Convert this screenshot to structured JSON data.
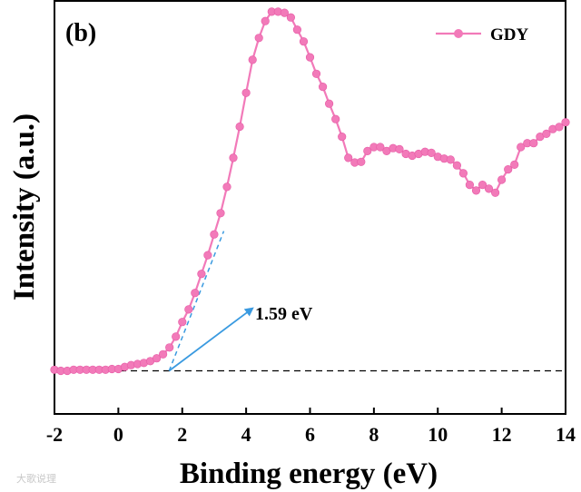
{
  "chart_data": {
    "type": "line",
    "panel_label": "(b)",
    "xlabel": "Binding energy (eV)",
    "ylabel": "Intensity (a.u.)",
    "xlim": [
      -2,
      14
    ],
    "ylim": [
      -0.12,
      1.03
    ],
    "x_ticks": [
      -2,
      0,
      2,
      4,
      6,
      8,
      10,
      12,
      14
    ],
    "baseline_value": 0,
    "series": [
      {
        "name": "GDY",
        "color": "#f27ab9",
        "x": [
          -2.0,
          -1.8,
          -1.6,
          -1.4,
          -1.2,
          -1.0,
          -0.8,
          -0.6,
          -0.4,
          -0.2,
          0.0,
          0.2,
          0.4,
          0.6,
          0.8,
          1.0,
          1.2,
          1.4,
          1.6,
          1.8,
          2.0,
          2.2,
          2.4,
          2.6,
          2.8,
          3.0,
          3.2,
          3.4,
          3.6,
          3.8,
          4.0,
          4.2,
          4.4,
          4.6,
          4.8,
          5.0,
          5.2,
          5.4,
          5.6,
          5.8,
          6.0,
          6.2,
          6.4,
          6.6,
          6.8,
          7.0,
          7.2,
          7.4,
          7.6,
          7.8,
          8.0,
          8.2,
          8.4,
          8.6,
          8.8,
          9.0,
          9.2,
          9.4,
          9.6,
          9.8,
          10.0,
          10.2,
          10.4,
          10.6,
          10.8,
          11.0,
          11.2,
          11.4,
          11.6,
          11.8,
          12.0,
          12.2,
          12.4,
          12.6,
          12.8,
          13.0,
          13.2,
          13.4,
          13.6,
          13.8,
          14.0
        ],
        "y": [
          0.003,
          0.0,
          0.0,
          0.003,
          0.003,
          0.003,
          0.003,
          0.003,
          0.003,
          0.005,
          0.005,
          0.011,
          0.016,
          0.019,
          0.022,
          0.027,
          0.035,
          0.046,
          0.065,
          0.095,
          0.136,
          0.171,
          0.217,
          0.27,
          0.322,
          0.38,
          0.439,
          0.512,
          0.593,
          0.68,
          0.774,
          0.866,
          0.927,
          0.974,
          1.0,
          1.0,
          0.997,
          0.984,
          0.95,
          0.917,
          0.873,
          0.827,
          0.791,
          0.744,
          0.701,
          0.652,
          0.593,
          0.58,
          0.582,
          0.612,
          0.623,
          0.623,
          0.612,
          0.62,
          0.617,
          0.604,
          0.599,
          0.604,
          0.61,
          0.607,
          0.596,
          0.591,
          0.588,
          0.572,
          0.55,
          0.518,
          0.502,
          0.518,
          0.507,
          0.496,
          0.532,
          0.561,
          0.574,
          0.623,
          0.634,
          0.634,
          0.652,
          0.66,
          0.673,
          0.679,
          0.692
        ]
      }
    ],
    "annotation": {
      "text": "1.59 eV",
      "tangent_from": [
        1.59,
        0
      ],
      "tangent_to": [
        3.3,
        0.389
      ],
      "arrow_from": [
        1.59,
        0
      ],
      "arrow_to": [
        4.2,
        0.174
      ]
    }
  },
  "legend": {
    "label": "GDY"
  },
  "watermark": "大歌说理"
}
